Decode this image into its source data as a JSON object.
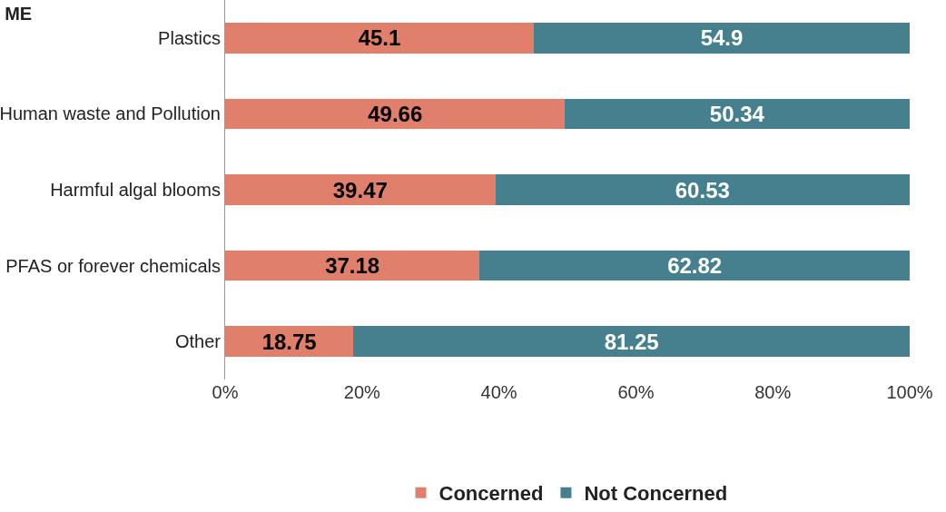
{
  "chart_data": {
    "type": "bar",
    "title": "ME",
    "orientation": "horizontal",
    "stacked": true,
    "categories": [
      "Plastics",
      "Human waste and Pollution",
      "Harmful algal blooms",
      "PFAS or forever chemicals",
      "Other"
    ],
    "series": [
      {
        "name": "Concerned",
        "color": "#e07f6c",
        "values": [
          45.1,
          49.66,
          39.47,
          37.18,
          18.75
        ]
      },
      {
        "name": "Not Concerned",
        "color": "#46808e",
        "values": [
          54.9,
          50.34,
          60.53,
          62.82,
          81.25
        ]
      }
    ],
    "xlim": [
      0,
      100
    ],
    "xticks": [
      {
        "value": 0,
        "label": "0%"
      },
      {
        "value": 20,
        "label": "20%"
      },
      {
        "value": 40,
        "label": "40%"
      },
      {
        "value": 60,
        "label": "60%"
      },
      {
        "value": 80,
        "label": "80%"
      },
      {
        "value": 100,
        "label": "100%"
      }
    ],
    "data_labels": true,
    "legend": "bottom"
  }
}
